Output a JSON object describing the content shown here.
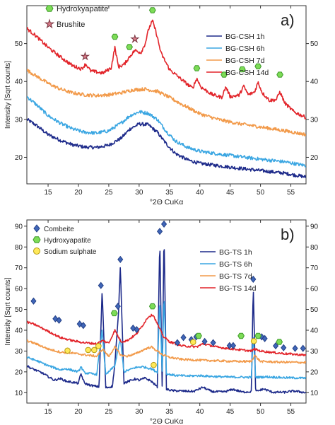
{
  "chart_data": [
    {
      "type": "line",
      "panel_label": "a)",
      "xlabel": "°2Θ CuKα",
      "ylabel": "Intensity [Sqrt counts]",
      "xlim": [
        11.5,
        57.5
      ],
      "ylim": [
        13,
        60
      ],
      "xticks": [
        15,
        20,
        25,
        30,
        35,
        40,
        45,
        50,
        55
      ],
      "yticks": [
        20,
        30,
        40,
        50
      ],
      "grid": false,
      "legend_position": "right",
      "series": [
        {
          "name": "BG-CSH 1h",
          "color": "#1d2a8a",
          "x": [
            11.5,
            13,
            15,
            17,
            19,
            21,
            23,
            25,
            27,
            28.5,
            30,
            31.5,
            33,
            34.5,
            36,
            38,
            40,
            43,
            46,
            50,
            54,
            57.5
          ],
          "y": [
            30,
            28.5,
            26,
            24.5,
            23.3,
            22.7,
            22.6,
            23.2,
            25,
            27.5,
            28.8,
            28.6,
            26.6,
            23.5,
            21,
            19.3,
            18.4,
            17.8,
            17.2,
            16.5,
            15.8,
            14.8
          ]
        },
        {
          "name": "BG-CSH 6h",
          "color": "#3aa6e2",
          "x": [
            11.5,
            13,
            15,
            17,
            19,
            21,
            23,
            25,
            27,
            28.5,
            30,
            31.5,
            33,
            34.5,
            36,
            38,
            40,
            43,
            46,
            50,
            54,
            57.5
          ],
          "y": [
            36,
            34,
            31,
            29,
            27.5,
            26.6,
            26.4,
            27,
            29,
            31,
            32,
            31.6,
            30,
            26.8,
            24.3,
            22.6,
            21.6,
            20.9,
            20.3,
            19.5,
            18.8,
            17.8
          ]
        },
        {
          "name": "BG-CSH 7d",
          "color": "#f29a4a",
          "x": [
            11.5,
            13,
            15,
            17,
            19,
            21,
            23,
            25,
            27,
            29,
            31,
            33,
            35,
            37,
            40,
            43,
            46,
            50,
            54,
            57.5
          ],
          "y": [
            43,
            41.5,
            39.5,
            38,
            37,
            36.5,
            36.3,
            36.5,
            37,
            37.8,
            38,
            37.4,
            35.8,
            34,
            31.5,
            30,
            29,
            28,
            27,
            26
          ]
        },
        {
          "name": "BG-CSH 14d",
          "color": "#e2242a",
          "x": [
            11.5,
            13,
            15,
            17,
            19,
            20.5,
            21.2,
            22,
            24,
            25.4,
            26,
            26.6,
            27.6,
            28.4,
            29.3,
            30.3,
            31,
            31.6,
            32.2,
            32.8,
            33.6,
            35,
            37,
            38.8,
            39.5,
            40.2,
            42,
            43.6,
            44.3,
            45,
            46.5,
            47.2,
            48,
            49,
            49.6,
            50.3,
            51.5,
            52.6,
            53.2,
            54,
            55.5,
            57.5
          ],
          "y": [
            54,
            52,
            49,
            46.5,
            44.2,
            43.3,
            44.6,
            42.8,
            42.2,
            43.6,
            49,
            43.8,
            44.6,
            46.5,
            48.2,
            47.6,
            50,
            54,
            56,
            53,
            47.5,
            43.2,
            40.5,
            38.2,
            40.8,
            38.5,
            36.6,
            35.8,
            38.6,
            36,
            36.4,
            38.8,
            36.5,
            37.2,
            39.8,
            37,
            35,
            35.2,
            37.3,
            34.3,
            32,
            30.5
          ]
        }
      ],
      "markers": [
        {
          "phase": "Hydroxyapatite",
          "x": 26,
          "y": 51.8
        },
        {
          "phase": "Hydroxyapatite",
          "x": 28.4,
          "y": 49.1
        },
        {
          "phase": "Hydroxyapatite",
          "x": 32.2,
          "y": 58.8
        },
        {
          "phase": "Hydroxyapatite",
          "x": 39.5,
          "y": 43.5
        },
        {
          "phase": "Hydroxyapatite",
          "x": 44,
          "y": 41.8
        },
        {
          "phase": "Hydroxyapatite",
          "x": 47,
          "y": 43.2
        },
        {
          "phase": "Hydroxyapatite",
          "x": 49.6,
          "y": 44
        },
        {
          "phase": "Hydroxyapatite",
          "x": 53.2,
          "y": 41.8
        },
        {
          "phase": "Brushite",
          "x": 21.1,
          "y": 46.6
        },
        {
          "phase": "Brushite",
          "x": 29.3,
          "y": 51.2
        }
      ],
      "marker_legend": [
        "Hydroxyapatite",
        "Brushite"
      ]
    },
    {
      "type": "line",
      "panel_label": "b)",
      "xlabel": "°2Θ CuKα",
      "ylabel": "Intensity [Sqrt counts]",
      "xlim": [
        11.5,
        57.5
      ],
      "ylim": [
        5,
        93
      ],
      "xticks": [
        15,
        20,
        25,
        30,
        35,
        40,
        45,
        50,
        55
      ],
      "yticks": [
        10,
        20,
        30,
        40,
        50,
        60,
        70,
        80,
        90
      ],
      "grid": false,
      "legend_position": "right",
      "series": [
        {
          "name": "BG-TS 1h",
          "color": "#1d2a8a",
          "x": [
            11.5,
            12,
            14,
            16,
            17,
            18,
            20,
            20.4,
            21,
            22,
            23.4,
            23.9,
            24.5,
            25.6,
            26,
            26.6,
            26.9,
            27.5,
            29.3,
            30,
            31,
            32,
            33,
            33.4,
            33.8,
            34.1,
            34.5,
            35.5,
            37,
            39,
            40.5,
            42,
            44,
            45.5,
            47,
            48.5,
            48.8,
            49.2,
            50.5,
            52,
            54,
            55.5,
            57.5
          ],
          "y": [
            23,
            22,
            19.5,
            16,
            16.8,
            15.5,
            14.5,
            19.2,
            14.5,
            13.5,
            12.8,
            59,
            12.4,
            13,
            24,
            48,
            71,
            14.6,
            16.6,
            16,
            17,
            15.5,
            12.8,
            84.5,
            12.2,
            88,
            11.6,
            11,
            10.8,
            10.6,
            12.6,
            10.5,
            10.4,
            11.6,
            10.3,
            10.5,
            62,
            10.5,
            11.8,
            10.2,
            10.2,
            10.8,
            10
          ]
        },
        {
          "name": "BG-TS 6h",
          "color": "#3aa6e2",
          "x": [
            11.5,
            13,
            15,
            17,
            18,
            20,
            20.4,
            21,
            23,
            23.9,
            24.5,
            26,
            26.9,
            27.5,
            29.3,
            30.5,
            32,
            33,
            33.4,
            33.8,
            34.1,
            34.5,
            36,
            38,
            40,
            42,
            45,
            48.5,
            48.8,
            49.2,
            51,
            54,
            57.5
          ],
          "y": [
            27,
            25.5,
            23,
            21,
            21.5,
            20,
            22.5,
            19.5,
            18.8,
            40,
            18.5,
            23,
            36,
            20,
            22,
            22.5,
            21.5,
            19.8,
            55,
            19.6,
            58,
            19,
            18.3,
            18,
            18.2,
            17.8,
            17.5,
            17.4,
            38,
            17.4,
            17.6,
            17.2,
            17
          ]
        },
        {
          "name": "BG-TS 7d",
          "color": "#f29a4a",
          "x": [
            11.5,
            13,
            15,
            17,
            19,
            21,
            23,
            24,
            25,
            26,
            27,
            28,
            29.5,
            31,
            32,
            33,
            34,
            35,
            37,
            40,
            43,
            46,
            48.5,
            49,
            50,
            53,
            57.5
          ],
          "y": [
            35,
            33.5,
            31,
            29.5,
            29,
            28.2,
            27.5,
            31,
            27.3,
            32,
            28,
            27.5,
            28.8,
            31,
            32,
            30,
            28,
            27,
            26,
            25.6,
            25.3,
            25,
            25,
            28,
            25,
            24.7,
            24.5
          ]
        },
        {
          "name": "BG-TS 14d",
          "color": "#e2242a",
          "x": [
            11.5,
            13,
            15,
            17,
            19,
            21,
            23,
            24,
            25,
            26,
            27,
            28,
            29.5,
            30.5,
            31.5,
            32.3,
            33,
            34,
            35,
            37,
            39.5,
            40.5,
            43,
            46,
            48.5,
            49,
            50,
            53,
            57.5
          ],
          "y": [
            44,
            42.5,
            39.5,
            36.5,
            35,
            34,
            33.5,
            35,
            33.8,
            40,
            34.5,
            35,
            38,
            42,
            46.5,
            47.5,
            43,
            37,
            34.5,
            32.5,
            32,
            33.5,
            31.8,
            30.8,
            30,
            31,
            30,
            29,
            28
          ]
        }
      ],
      "markers": [
        {
          "phase": "Combeite",
          "x": 12.6,
          "y": 54
        },
        {
          "phase": "Combeite",
          "x": 16.2,
          "y": 45.5
        },
        {
          "phase": "Combeite",
          "x": 16.8,
          "y": 44.8
        },
        {
          "phase": "Combeite",
          "x": 20.2,
          "y": 43
        },
        {
          "phase": "Combeite",
          "x": 20.8,
          "y": 42.3
        },
        {
          "phase": "Combeite",
          "x": 23.7,
          "y": 61.5
        },
        {
          "phase": "Combeite",
          "x": 26.5,
          "y": 51.5
        },
        {
          "phase": "Combeite",
          "x": 26.9,
          "y": 74
        },
        {
          "phase": "Combeite",
          "x": 29,
          "y": 41
        },
        {
          "phase": "Combeite",
          "x": 29.6,
          "y": 40.3
        },
        {
          "phase": "Combeite",
          "x": 33.4,
          "y": 87.5
        },
        {
          "phase": "Combeite",
          "x": 34.1,
          "y": 91
        },
        {
          "phase": "Combeite",
          "x": 36.3,
          "y": 34
        },
        {
          "phase": "Combeite",
          "x": 37.3,
          "y": 36.5
        },
        {
          "phase": "Combeite",
          "x": 38.6,
          "y": 35.5
        },
        {
          "phase": "Combeite",
          "x": 39.4,
          "y": 36.8
        },
        {
          "phase": "Combeite",
          "x": 40.8,
          "y": 34.6
        },
        {
          "phase": "Combeite",
          "x": 42.2,
          "y": 34
        },
        {
          "phase": "Combeite",
          "x": 44.9,
          "y": 32.6
        },
        {
          "phase": "Combeite",
          "x": 45.5,
          "y": 32.6
        },
        {
          "phase": "Combeite",
          "x": 48.8,
          "y": 64.5
        },
        {
          "phase": "Combeite",
          "x": 50.2,
          "y": 36.8
        },
        {
          "phase": "Combeite",
          "x": 50.7,
          "y": 36
        },
        {
          "phase": "Combeite",
          "x": 52.5,
          "y": 32.5
        },
        {
          "phase": "Combeite",
          "x": 53.8,
          "y": 31.6
        },
        {
          "phase": "Combeite",
          "x": 55.7,
          "y": 31.3
        },
        {
          "phase": "Combeite",
          "x": 57,
          "y": 31.3
        },
        {
          "phase": "Hydroxyapatite",
          "x": 25.9,
          "y": 48.2
        },
        {
          "phase": "Hydroxyapatite",
          "x": 32.2,
          "y": 51.5
        },
        {
          "phase": "Hydroxyapatite",
          "x": 39.8,
          "y": 37.3
        },
        {
          "phase": "Hydroxyapatite",
          "x": 46.8,
          "y": 37.3
        },
        {
          "phase": "Hydroxyapatite",
          "x": 49.6,
          "y": 37.3
        },
        {
          "phase": "Hydroxyapatite",
          "x": 53.1,
          "y": 34.4
        },
        {
          "phase": "Sodium sulphate",
          "x": 18.2,
          "y": 30.2
        },
        {
          "phase": "Sodium sulphate",
          "x": 21.6,
          "y": 30.5
        },
        {
          "phase": "Sodium sulphate",
          "x": 22.6,
          "y": 30.5
        },
        {
          "phase": "Sodium sulphate",
          "x": 23.3,
          "y": 32.4
        },
        {
          "phase": "Sodium sulphate",
          "x": 32.4,
          "y": 23.3
        },
        {
          "phase": "Sodium sulphate",
          "x": 38.9,
          "y": 34.3
        },
        {
          "phase": "Sodium sulphate",
          "x": 48.9,
          "y": 34.8
        }
      ],
      "marker_legend": [
        "Combeite",
        "Hydroxyapatite",
        "Sodium sulphate"
      ]
    }
  ],
  "marker_styles": {
    "Hydroxyapatite": {
      "shape": "hexagon",
      "fill": "#7ddc57",
      "stroke": "#3f9a2a"
    },
    "Brushite": {
      "shape": "star",
      "fill": "#d97d8a",
      "stroke": "#7a3440"
    },
    "Combeite": {
      "shape": "diamond",
      "fill": "#4066b8",
      "stroke": "#223f86"
    },
    "Sodium sulphate": {
      "shape": "circle",
      "fill": "#ffe95a",
      "stroke": "#b59a10"
    }
  }
}
